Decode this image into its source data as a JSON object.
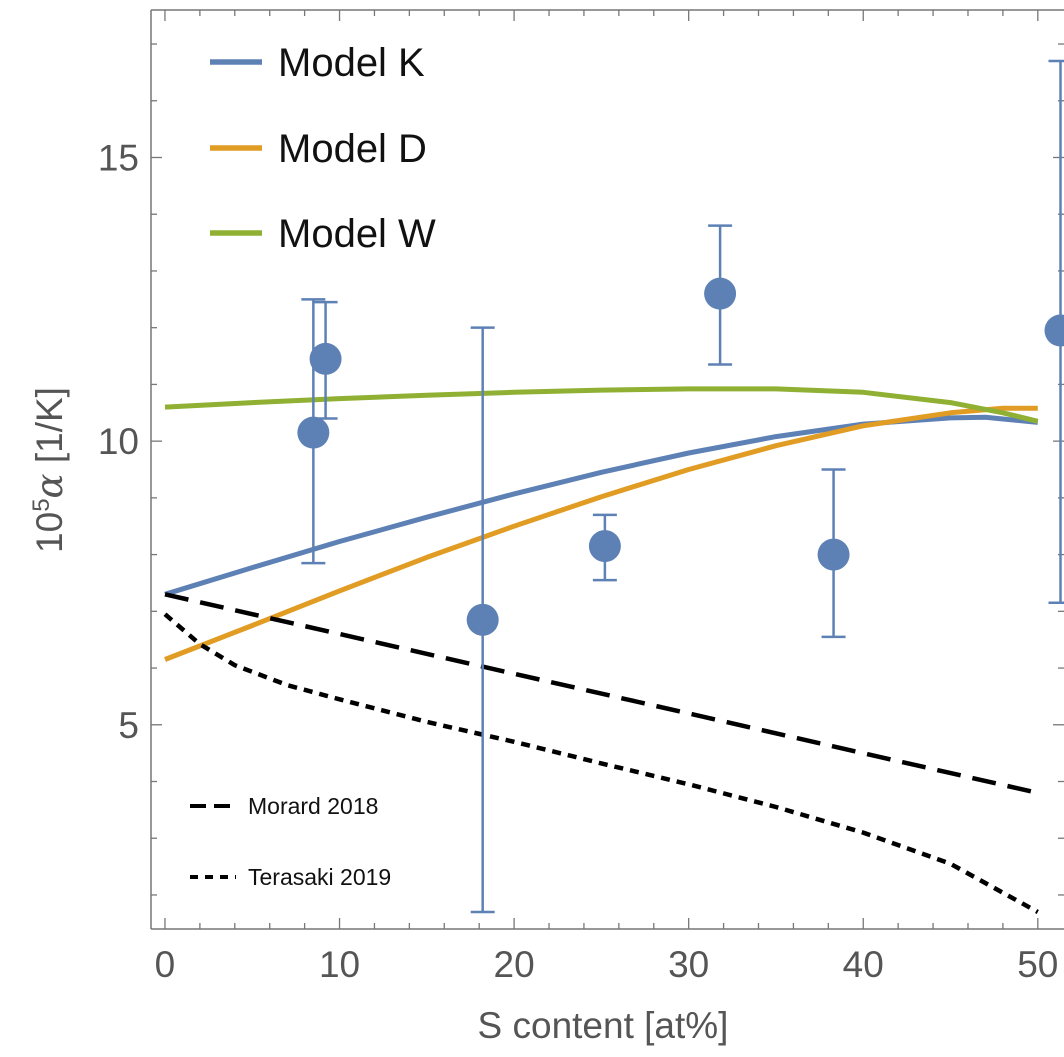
{
  "chart_data": {
    "type": "scatter",
    "xlabel": "S content [at%]",
    "ylabel_main": "10",
    "ylabel_sup": "5",
    "ylabel_symbol": "α",
    "ylabel_unit": " [1/K]",
    "xlim": [
      -0.8,
      51.5
    ],
    "ylim": [
      1.4,
      17.6
    ],
    "x_ticks": [
      0,
      10,
      20,
      30,
      40,
      50
    ],
    "y_ticks": [
      5,
      10,
      15
    ],
    "x_tick_labels": [
      "0",
      "10",
      "20",
      "30",
      "40",
      "50"
    ],
    "y_tick_labels": [
      "5",
      "10",
      "15"
    ],
    "grid": false,
    "colors": {
      "model_k": "#5e81b5",
      "model_d": "#e19c24",
      "model_w": "#8fb032",
      "points": "#5e81b5",
      "reference": "#000000"
    },
    "legend": [
      {
        "key": "model_k",
        "label": "Model K"
      },
      {
        "key": "model_d",
        "label": "Model D"
      },
      {
        "key": "model_w",
        "label": "Model W"
      }
    ],
    "legend_refs": [
      {
        "key": "morard",
        "label": "Morard 2018"
      },
      {
        "key": "terasaki",
        "label": "Terasaki 2019"
      }
    ],
    "series": [
      {
        "key": "model_k",
        "style": "solid",
        "x": [
          0,
          5,
          10,
          15,
          20,
          25,
          30,
          35,
          40,
          45,
          47,
          50
        ],
        "y": [
          7.3,
          7.77,
          8.23,
          8.66,
          9.07,
          9.45,
          9.79,
          10.08,
          10.3,
          10.41,
          10.42,
          10.33
        ]
      },
      {
        "key": "model_d",
        "style": "solid",
        "x": [
          0,
          5,
          10,
          15,
          20,
          25,
          30,
          35,
          40,
          45,
          48,
          50
        ],
        "y": [
          6.15,
          6.75,
          7.36,
          7.95,
          8.5,
          9.02,
          9.5,
          9.92,
          10.27,
          10.5,
          10.58,
          10.58
        ]
      },
      {
        "key": "model_w",
        "style": "solid",
        "x": [
          0,
          5,
          10,
          15,
          20,
          25,
          30,
          35,
          40,
          45,
          48,
          50
        ],
        "y": [
          10.6,
          10.68,
          10.75,
          10.81,
          10.86,
          10.9,
          10.92,
          10.92,
          10.86,
          10.68,
          10.5,
          10.35
        ]
      },
      {
        "key": "morard",
        "style": "dashed",
        "x": [
          0,
          50
        ],
        "y": [
          7.3,
          3.8
        ]
      },
      {
        "key": "terasaki",
        "style": "dotted",
        "x": [
          0,
          2,
          4,
          7,
          10,
          15,
          20,
          25,
          30,
          35,
          40,
          45,
          50
        ],
        "y": [
          6.95,
          6.42,
          6.05,
          5.7,
          5.45,
          5.05,
          4.7,
          4.32,
          3.95,
          3.55,
          3.1,
          2.55,
          1.7
        ]
      }
    ],
    "points": [
      {
        "x": 8.5,
        "y": 10.15,
        "ymin": 7.85,
        "ymax": 12.5
      },
      {
        "x": 9.2,
        "y": 11.45,
        "ymin": 10.4,
        "ymax": 12.45
      },
      {
        "x": 18.2,
        "y": 6.85,
        "ymin": 1.7,
        "ymax": 12.0
      },
      {
        "x": 25.2,
        "y": 8.15,
        "ymin": 7.55,
        "ymax": 8.7
      },
      {
        "x": 31.8,
        "y": 12.6,
        "ymin": 11.35,
        "ymax": 13.8
      },
      {
        "x": 38.3,
        "y": 8.0,
        "ymin": 6.55,
        "ymax": 9.5
      },
      {
        "x": 51.3,
        "y": 11.95,
        "ymin": 7.15,
        "ymax": 16.7
      }
    ]
  }
}
